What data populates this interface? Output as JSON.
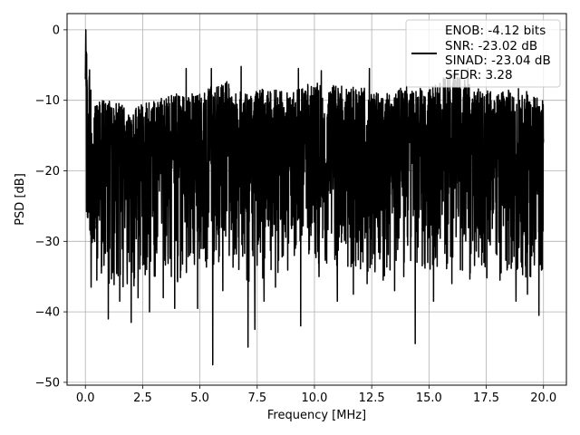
{
  "chart_data": {
    "type": "line",
    "title": "",
    "xlabel": "Frequency [MHz]",
    "ylabel": "PSD [dB]",
    "xlim": [
      -0.8,
      21.0
    ],
    "ylim": [
      -50.4,
      2.3
    ],
    "xticks": [
      0.0,
      2.5,
      5.0,
      7.5,
      10.0,
      12.5,
      15.0,
      17.5,
      20.0
    ],
    "xtick_labels": [
      "0.0",
      "2.5",
      "5.0",
      "7.5",
      "10.0",
      "12.5",
      "15.0",
      "17.5",
      "20.0"
    ],
    "yticks": [
      0,
      -10,
      -20,
      -30,
      -40,
      -50
    ],
    "ytick_labels": [
      "0",
      "−10",
      "−20",
      "−30",
      "−40",
      "−50"
    ],
    "grid": true,
    "legend": {
      "placement": "top-right",
      "lines": [
        "ENOB: -4.12 bits",
        "SNR: -23.02 dB",
        "SINAD: -23.04 dB",
        "SFDR: 3.28"
      ]
    },
    "series": [
      {
        "color": "#000000",
        "description_x_range": [
          0.0,
          20.0
        ],
        "x": [
          0.0,
          0.02,
          0.05,
          0.1,
          0.2,
          0.35,
          0.5,
          0.7,
          1.0,
          1.3,
          1.6,
          2.0,
          2.5,
          3.0,
          3.5,
          4.0,
          4.5,
          5.0,
          5.5,
          6.0,
          6.5,
          7.0,
          7.5,
          8.0,
          8.5,
          9.0,
          9.5,
          10.0,
          10.5,
          11.0,
          11.5,
          12.0,
          12.5,
          13.0,
          13.5,
          14.0,
          14.5,
          15.0,
          15.5,
          16.0,
          16.5,
          17.0,
          17.5,
          18.0,
          18.5,
          19.0,
          19.5,
          20.0
        ],
        "y": [
          -7,
          0,
          -16,
          -22,
          -20,
          -24,
          -18,
          -22,
          -16,
          -21,
          -17,
          -20,
          -18,
          -15,
          -19,
          -16,
          -20,
          -17,
          -18,
          -15,
          -19,
          -17,
          -14,
          -18,
          -16,
          -20,
          -15,
          -17,
          -19,
          -16,
          -18,
          -14,
          -17,
          -16,
          -19,
          -15,
          -17,
          -18,
          -16,
          -14,
          -19,
          -17,
          -15,
          -18,
          -16,
          -19,
          -17,
          -20
        ]
      }
    ],
    "envelope": {
      "x": [
        0.05,
        0.5,
        1.0,
        2.0,
        3.0,
        4.0,
        5.0,
        6.0,
        7.0,
        8.0,
        9.0,
        10.0,
        11.0,
        12.0,
        13.0,
        14.0,
        15.0,
        16.0,
        17.0,
        18.0,
        19.0,
        20.0
      ],
      "upper": [
        -3,
        -10,
        -10,
        -11,
        -10,
        -9,
        -9,
        -7,
        -9,
        -8,
        -9,
        -7,
        -8,
        -8,
        -9,
        -8,
        -8,
        -6,
        -8,
        -9,
        -8,
        -10
      ],
      "lower": [
        -26,
        -34,
        -36,
        -37,
        -35,
        -36,
        -34,
        -33,
        -36,
        -35,
        -34,
        -33,
        -34,
        -34,
        -35,
        -33,
        -34,
        -34,
        -36,
        -35,
        -36,
        -34
      ]
    },
    "dips": [
      {
        "x": 0.25,
        "y": -36.5
      },
      {
        "x": 0.5,
        "y": -35.5
      },
      {
        "x": 0.7,
        "y": -34.5
      },
      {
        "x": 1.0,
        "y": -41.0
      },
      {
        "x": 1.5,
        "y": -38.5
      },
      {
        "x": 2.0,
        "y": -41.5
      },
      {
        "x": 2.3,
        "y": -38.0
      },
      {
        "x": 2.8,
        "y": -40.0
      },
      {
        "x": 3.4,
        "y": -38.0
      },
      {
        "x": 3.9,
        "y": -39.5
      },
      {
        "x": 4.9,
        "y": -39.5
      },
      {
        "x": 5.56,
        "y": -47.5
      },
      {
        "x": 6.0,
        "y": -37.0
      },
      {
        "x": 6.7,
        "y": -34.0
      },
      {
        "x": 7.1,
        "y": -45.0
      },
      {
        "x": 7.4,
        "y": -42.5
      },
      {
        "x": 7.8,
        "y": -38.5
      },
      {
        "x": 8.3,
        "y": -36.5
      },
      {
        "x": 9.4,
        "y": -42.0
      },
      {
        "x": 10.2,
        "y": -35.0
      },
      {
        "x": 11.0,
        "y": -38.5
      },
      {
        "x": 11.7,
        "y": -37.5
      },
      {
        "x": 12.3,
        "y": -36.0
      },
      {
        "x": 13.0,
        "y": -35.5
      },
      {
        "x": 13.5,
        "y": -37.0
      },
      {
        "x": 13.9,
        "y": -35.0
      },
      {
        "x": 14.4,
        "y": -44.5
      },
      {
        "x": 15.2,
        "y": -38.5
      },
      {
        "x": 16.0,
        "y": -36.0
      },
      {
        "x": 16.8,
        "y": -34.5
      },
      {
        "x": 17.4,
        "y": -33.0
      },
      {
        "x": 18.1,
        "y": -35.5
      },
      {
        "x": 18.8,
        "y": -38.5
      },
      {
        "x": 19.3,
        "y": -37.5
      },
      {
        "x": 19.8,
        "y": -40.5
      }
    ],
    "peaks": [
      {
        "x": 0.02,
        "y": 0.0
      },
      {
        "x": 4.4,
        "y": -5.5
      },
      {
        "x": 5.5,
        "y": -5.5
      },
      {
        "x": 6.8,
        "y": -5.2
      },
      {
        "x": 9.3,
        "y": -5.5
      },
      {
        "x": 10.3,
        "y": -5.8
      },
      {
        "x": 12.4,
        "y": -5.5
      },
      {
        "x": 16.7,
        "y": -5.5
      }
    ]
  }
}
